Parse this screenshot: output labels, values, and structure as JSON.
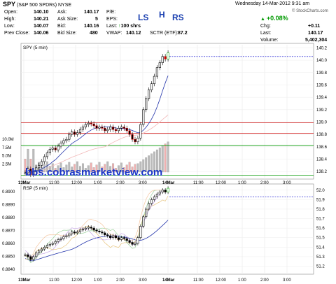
{
  "header": {
    "symbol": "SPY",
    "name": "(S&P 500 SPDRs)",
    "exchange": "NYSE",
    "datetime": "Wednesday 14-Mar-2012 9:31 am",
    "brand": "© StockCharts.com",
    "open_label": "Open:",
    "open": "140.10",
    "high_label": "High:",
    "high": "140.21",
    "low_label": "Low:",
    "low": "140.07",
    "prev_label": "Prev Close:",
    "prev": "140.06",
    "ask_label": "Ask:",
    "ask": "140.17",
    "asksize_label": "Ask Size:",
    "asksize": "5",
    "bid_label": "Bid:",
    "bid": "140.16",
    "bidsize_label": "Bid Size:",
    "bidsize": "480",
    "pe_label": "P/E:",
    "eps_label": "EPS:",
    "last_label": "Last:",
    "last_shares": "100 shrs",
    "vwap_label": "VWAP:",
    "vwap": "140.12",
    "sctr_label": "SCTR (ETF):",
    "sctr": "87.2",
    "pct_change": "+0.08%",
    "chg_label": "Chg:",
    "chg": "+0.11",
    "last2_label": "Last:",
    "last2": "140.17",
    "vol_label": "Volume:",
    "vol": "5,402,304"
  },
  "annotations": [
    "LS",
    "H",
    "RS"
  ],
  "watermark": "bbs.cobrasmarketview.com",
  "colors": {
    "accent": "#1a3fb0",
    "red_line": "#cc0000",
    "green_line": "#009900",
    "dotted": "#0000cc"
  },
  "chart_data": [
    {
      "type": "line",
      "panel": "price",
      "label": "SPY (5 min)",
      "x_ticks": [
        "13Mar",
        "11:00",
        "12:00",
        "1:00",
        "2:00",
        "3:00",
        "14Mar",
        "11:00",
        "12:00",
        "1:00",
        "2:00",
        "3:00"
      ],
      "y_ticks": [
        "140.2",
        "140.0",
        "139.8",
        "139.6",
        "139.4",
        "139.2",
        "139.0",
        "138.8",
        "138.6",
        "138.4",
        "138.2"
      ],
      "ylim": [
        138.1,
        140.25
      ],
      "volume_ticks": [
        "10.0M",
        "7.5M",
        "5.0M",
        "2.5M"
      ],
      "horizontal_lines": [
        {
          "value": 138.99,
          "color": "red"
        },
        {
          "value": 138.82,
          "color": "red"
        },
        {
          "value": 138.62,
          "color": "green"
        },
        {
          "value": 138.14,
          "color": "green"
        }
      ],
      "last_price_dotted": 140.06,
      "close_series": [
        138.18,
        138.24,
        138.15,
        138.2,
        138.26,
        138.3,
        138.36,
        138.44,
        138.5,
        138.56,
        138.58,
        138.55,
        138.61,
        138.66,
        138.7,
        138.72,
        138.8,
        138.84,
        138.8,
        138.83,
        138.88,
        138.92,
        138.96,
        138.98,
        138.97,
        138.94,
        138.9,
        138.92,
        138.9,
        138.86,
        138.88,
        138.92,
        138.88,
        138.86,
        138.9,
        138.92,
        138.9,
        138.86,
        138.8,
        138.72,
        138.68,
        138.74,
        138.96,
        139.2,
        139.38,
        139.52,
        139.62,
        139.74,
        139.88,
        139.96,
        140.06,
        140.02,
        140.12
      ]
    },
    {
      "type": "line",
      "panel": "rsp",
      "label": "RSP (5 min)",
      "x_ticks": [
        "13Mar",
        "11:00",
        "12:00",
        "1:00",
        "2:00",
        "3:00",
        "14Mar",
        "11:00",
        "12:00",
        "1:00",
        "2:00",
        "3:00"
      ],
      "y_ticks_left": [
        "0.8900",
        "0.8890",
        "0.8880",
        "0.8870",
        "0.8860",
        "0.8850",
        "0.8840"
      ],
      "y_ticks_right": [
        "52.0",
        "51.9",
        "51.8",
        "51.7",
        "51.6",
        "51.5",
        "51.4",
        "51.3",
        "51.2"
      ],
      "ylim_right": [
        51.13,
        52.05
      ],
      "close_series": [
        51.32,
        51.3,
        51.27,
        51.3,
        51.34,
        51.36,
        51.38,
        51.4,
        51.42,
        51.43,
        51.44,
        51.46,
        51.48,
        51.49,
        51.51,
        51.52,
        51.54,
        51.56,
        51.55,
        51.56,
        51.58,
        51.59,
        51.6,
        51.61,
        51.6,
        51.58,
        51.57,
        51.56,
        51.55,
        51.53,
        51.52,
        51.5,
        51.52,
        51.5,
        51.48,
        51.5,
        51.49,
        51.47,
        51.45,
        51.43,
        51.44,
        51.5,
        51.62,
        51.72,
        51.8,
        51.86,
        51.9,
        51.93,
        51.96,
        51.98,
        52.0,
        51.98,
        52.02
      ]
    }
  ]
}
